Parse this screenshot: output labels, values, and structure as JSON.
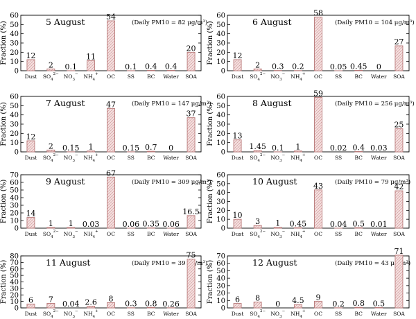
{
  "figure": {
    "categories": [
      "Dust",
      "SO4",
      "NO3",
      "NH4",
      "OC",
      "SS",
      "BC",
      "Water",
      "SOA"
    ],
    "category_labels": [
      {
        "base": "Dust"
      },
      {
        "base": "SO",
        "sub": "4",
        "sup": "2−"
      },
      {
        "base": "NO",
        "sub": "3",
        "sup": "−"
      },
      {
        "base": "NH",
        "sub": "4",
        "sup": "+"
      },
      {
        "base": "OC"
      },
      {
        "base": "SS"
      },
      {
        "base": "BC"
      },
      {
        "base": "Water"
      },
      {
        "base": "SOA"
      }
    ],
    "ylabel": "Fraction (%)",
    "bar_fill": "#f3dcdc",
    "bar_stroke": "#b87878"
  },
  "chart_data": [
    {
      "type": "bar",
      "title": "5 August",
      "annotation": "(Daily PM10 = 82 μg/m³)",
      "ylabel": "Fraction (%)",
      "ylim": [
        0,
        60
      ],
      "yticks": [
        0,
        10,
        20,
        30,
        40,
        50,
        60
      ],
      "values": [
        12,
        2,
        0.1,
        11,
        54,
        0.1,
        0.4,
        0.4,
        20
      ],
      "labels": [
        "12",
        "2",
        "0.1",
        "11",
        "54",
        "0.1",
        "0.4",
        "0.4",
        "20"
      ]
    },
    {
      "type": "bar",
      "title": "6 August",
      "annotation": "(Daily PM10 = 104 μg/m³)",
      "ylabel": "Fraction (%)",
      "ylim": [
        0,
        60
      ],
      "yticks": [
        0,
        10,
        20,
        30,
        40,
        50,
        60
      ],
      "values": [
        12,
        2,
        0.3,
        0.2,
        58,
        0.05,
        0.45,
        0,
        27
      ],
      "labels": [
        "12",
        "2",
        "0.3",
        "0.2",
        "58",
        "0.05",
        "0.45",
        "0",
        "27"
      ]
    },
    {
      "type": "bar",
      "title": "7 August",
      "annotation": "(Daily PM10 = 147 μg/m³)",
      "ylabel": "Fraction (%)",
      "ylim": [
        0,
        60
      ],
      "yticks": [
        0,
        10,
        20,
        30,
        40,
        50,
        60
      ],
      "values": [
        12,
        2,
        0.15,
        1,
        47,
        0.15,
        0.7,
        0,
        37
      ],
      "labels": [
        "12",
        "2",
        "0.15",
        "1",
        "47",
        "0.15",
        "0.7",
        "0",
        "37"
      ]
    },
    {
      "type": "bar",
      "title": "8 August",
      "annotation": "(Daily PM10 = 256 μg/m³)",
      "ylabel": "Fraction (%)",
      "ylim": [
        0,
        60
      ],
      "yticks": [
        0,
        10,
        20,
        30,
        40,
        50,
        60
      ],
      "values": [
        13,
        1.45,
        0.1,
        1,
        59,
        0.02,
        0.4,
        0.03,
        25
      ],
      "labels": [
        "13",
        "1.45",
        "0.1",
        "1",
        "59",
        "0.02",
        "0.4",
        "0.03",
        "25"
      ]
    },
    {
      "type": "bar",
      "title": "9 August",
      "annotation": "(Daily PM10 = 309 μg/m³)",
      "ylabel": "Fraction (%)",
      "ylim": [
        0,
        70
      ],
      "yticks": [
        0,
        10,
        20,
        30,
        40,
        50,
        60,
        70
      ],
      "values": [
        14,
        1,
        1,
        0.03,
        67,
        0.06,
        0.35,
        0.06,
        16.5
      ],
      "labels": [
        "14",
        "1",
        "1",
        "0.03",
        "67",
        "0.06",
        "0.35",
        "0.06",
        "16.5"
      ]
    },
    {
      "type": "bar",
      "title": "10 August",
      "annotation": "(Daily PM10 = 79 μg/m³)",
      "ylabel": "Fraction (%)",
      "ylim": [
        0,
        60
      ],
      "yticks": [
        0,
        10,
        20,
        30,
        40,
        50,
        60
      ],
      "values": [
        10,
        3,
        1,
        0.45,
        43,
        0.04,
        0.5,
        0.01,
        42
      ],
      "labels": [
        "10",
        "3",
        "1",
        "0.45",
        "43",
        "0.04",
        "0.5",
        "0.01",
        "42"
      ]
    },
    {
      "type": "bar",
      "title": "11 August",
      "annotation": "(Daily PM10 = 39 μg/m³)",
      "ylabel": "Fraction (%)",
      "ylim": [
        0,
        80
      ],
      "yticks": [
        0,
        10,
        20,
        30,
        40,
        50,
        60,
        70,
        80
      ],
      "values": [
        6,
        7,
        0.04,
        2.6,
        8,
        0.3,
        0.8,
        0.26,
        75
      ],
      "labels": [
        "6",
        "7",
        "0.04",
        "2.6",
        "8",
        "0.3",
        "0.8",
        "0.26",
        "75"
      ]
    },
    {
      "type": "bar",
      "title": "12 August",
      "annotation": "(Daily PM10 = 43 μg/m³)",
      "ylabel": "Fraction (%)",
      "ylim": [
        0,
        70
      ],
      "yticks": [
        0,
        10,
        20,
        30,
        40,
        50,
        60,
        70
      ],
      "values": [
        6,
        8,
        0,
        4.5,
        9,
        0.2,
        0.8,
        0.5,
        71
      ],
      "labels": [
        "6",
        "8",
        "0",
        "4.5",
        "9",
        "0.2",
        "0.8",
        "0.5",
        "71"
      ]
    }
  ]
}
